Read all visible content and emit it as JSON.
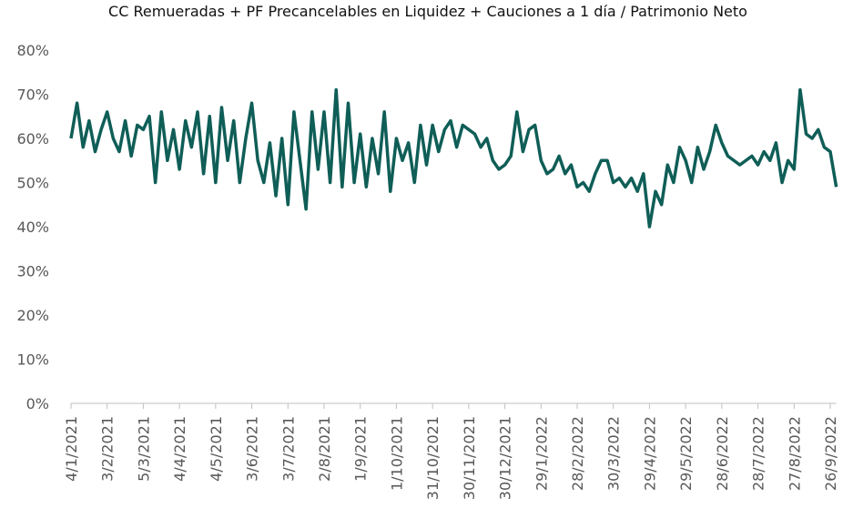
{
  "chart_data": {
    "type": "line",
    "title": "CC  Remueradas + PF Precancelables en Liquidez + Cauciones a 1 día / Patrimonio Neto",
    "categories": [
      "4/1/2021",
      null,
      null,
      null,
      null,
      null,
      "3/2/2021",
      null,
      null,
      null,
      null,
      null,
      "5/3/2021",
      null,
      null,
      null,
      null,
      null,
      "4/4/2021",
      null,
      null,
      null,
      null,
      null,
      "4/5/2021",
      null,
      null,
      null,
      null,
      null,
      "3/6/2021",
      null,
      null,
      null,
      null,
      null,
      "3/7/2021",
      null,
      null,
      null,
      null,
      null,
      "2/8/2021",
      null,
      null,
      null,
      null,
      null,
      "1/9/2021",
      null,
      null,
      null,
      null,
      null,
      "1/10/2021",
      null,
      null,
      null,
      null,
      null,
      "31/10/2021",
      null,
      null,
      null,
      null,
      null,
      "30/11/2021",
      null,
      null,
      null,
      null,
      null,
      "30/12/2021",
      null,
      null,
      null,
      null,
      null,
      "29/1/2022",
      null,
      null,
      null,
      null,
      null,
      "28/2/2022",
      null,
      null,
      null,
      null,
      null,
      "30/3/2022",
      null,
      null,
      null,
      null,
      null,
      "29/4/2022",
      null,
      null,
      null,
      null,
      null,
      "29/5/2022",
      null,
      null,
      null,
      null,
      null,
      "28/6/2022",
      null,
      null,
      null,
      null,
      null,
      "28/7/2022",
      null,
      null,
      null,
      null,
      null,
      "27/8/2022",
      null,
      null,
      null,
      null,
      null,
      "26/9/2022",
      null
    ],
    "series": [
      {
        "color": "#0f5e57",
        "values": [
          60,
          68,
          58,
          64,
          57,
          62,
          66,
          60,
          57,
          64,
          56,
          63,
          62,
          65,
          50,
          66,
          55,
          62,
          53,
          64,
          58,
          66,
          52,
          65,
          50,
          67,
          55,
          64,
          50,
          60,
          68,
          55,
          50,
          59,
          47,
          60,
          45,
          66,
          55,
          44,
          66,
          53,
          66,
          50,
          71,
          49,
          68,
          50,
          61,
          49,
          60,
          52,
          66,
          48,
          60,
          55,
          59,
          50,
          63,
          54,
          63,
          57,
          62,
          64,
          58,
          63,
          62,
          61,
          58,
          60,
          55,
          53,
          54,
          56,
          66,
          57,
          62,
          63,
          55,
          52,
          53,
          56,
          52,
          54,
          49,
          50,
          48,
          52,
          55,
          55,
          50,
          51,
          49,
          51,
          48,
          52,
          40,
          48,
          45,
          54,
          50,
          58,
          55,
          50,
          58,
          53,
          57,
          63,
          59,
          56,
          55,
          54,
          55,
          56,
          54,
          57,
          55,
          59,
          50,
          55,
          53,
          71,
          61,
          60,
          62,
          58,
          57,
          49
        ]
      }
    ],
    "ylim": [
      0,
      80
    ],
    "yticks": [
      {
        "value": 0,
        "label": "0%"
      },
      {
        "value": 10,
        "label": "10%"
      },
      {
        "value": 20,
        "label": "20%"
      },
      {
        "value": 30,
        "label": "30%"
      },
      {
        "value": 40,
        "label": "40%"
      },
      {
        "value": 50,
        "label": "50%"
      },
      {
        "value": 60,
        "label": "60%"
      },
      {
        "value": 70,
        "label": "70%"
      },
      {
        "value": 80,
        "label": "80%"
      }
    ],
    "grid": false
  }
}
